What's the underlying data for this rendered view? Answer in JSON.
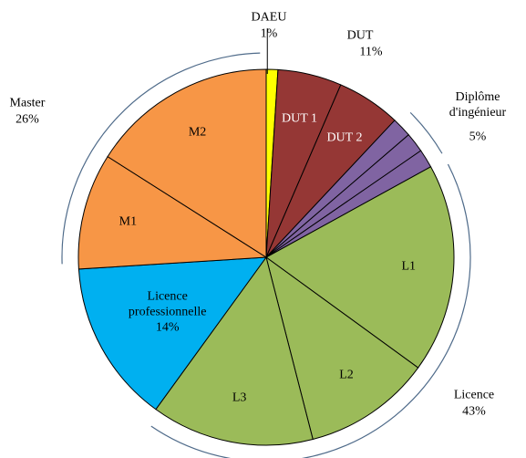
{
  "chart_data": {
    "type": "pie",
    "groups": [
      {
        "name": "DAEU",
        "value": 1,
        "value_label": "1%",
        "color": "#ffff00",
        "bracket": false,
        "label_inside": false
      },
      {
        "name": "DUT",
        "value": 11,
        "value_label": "11%",
        "color": "#953735",
        "bracket": false,
        "label_inside": false
      },
      {
        "name": "Diplôme d'ingénieur",
        "value": 5,
        "value_label": "5%",
        "color": "#8064a2",
        "bracket": true,
        "label_inside": false
      },
      {
        "name": "Licence",
        "value": 43,
        "value_label": "43%",
        "color": "#9bbb59",
        "bracket": true,
        "label_inside": false
      },
      {
        "name": "Licence professionnelle",
        "value": 14,
        "value_label": "14%",
        "color": "#00b0f0",
        "bracket": false,
        "label_inside": true
      },
      {
        "name": "Master",
        "value": 26,
        "value_label": "26%",
        "color": "#f79646",
        "bracket": true,
        "label_inside": false
      }
    ],
    "slices": [
      {
        "group": 0,
        "name": null,
        "value": 1
      },
      {
        "group": 1,
        "name": "DUT 1",
        "value": 5.5
      },
      {
        "group": 1,
        "name": "DUT 2",
        "value": 5.5
      },
      {
        "group": 2,
        "name": null,
        "value": 1.7
      },
      {
        "group": 2,
        "name": null,
        "value": 1.7
      },
      {
        "group": 2,
        "name": null,
        "value": 1.6
      },
      {
        "group": 3,
        "name": "L1",
        "value": 18
      },
      {
        "group": 3,
        "name": "L2",
        "value": 11
      },
      {
        "group": 3,
        "name": "L3",
        "value": 14
      },
      {
        "group": 4,
        "name": null,
        "value": 14
      },
      {
        "group": 5,
        "name": "M1",
        "value": 10
      },
      {
        "group": 5,
        "name": "M2",
        "value": 16
      }
    ]
  }
}
